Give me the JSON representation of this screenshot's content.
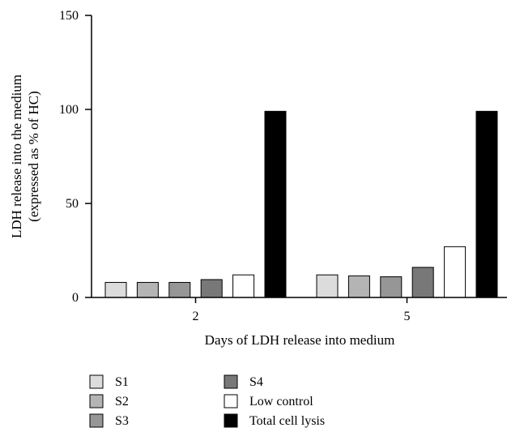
{
  "chart_data": {
    "type": "bar",
    "title": "",
    "xlabel": "Days of LDH release into medium",
    "ylabel_lines": [
      "LDH release into the medium",
      "(expressed as % of HC)"
    ],
    "ylim": [
      0,
      150
    ],
    "yticks": [
      0,
      50,
      100,
      150
    ],
    "categories": [
      "2",
      "5"
    ],
    "series": [
      {
        "name": "S1",
        "color": "#dcdcdc",
        "values": [
          8,
          12
        ]
      },
      {
        "name": "S2",
        "color": "#b4b4b4",
        "values": [
          8,
          11.5
        ]
      },
      {
        "name": "S3",
        "color": "#969696",
        "values": [
          8,
          11
        ]
      },
      {
        "name": "S4",
        "color": "#787878",
        "values": [
          9.5,
          16
        ]
      },
      {
        "name": "Low control",
        "color": "#ffffff",
        "values": [
          12,
          27
        ]
      },
      {
        "name": "Total cell lysis",
        "color": "#000000",
        "values": [
          99,
          99
        ]
      }
    ],
    "legend_position": "bottom",
    "grid": false
  }
}
